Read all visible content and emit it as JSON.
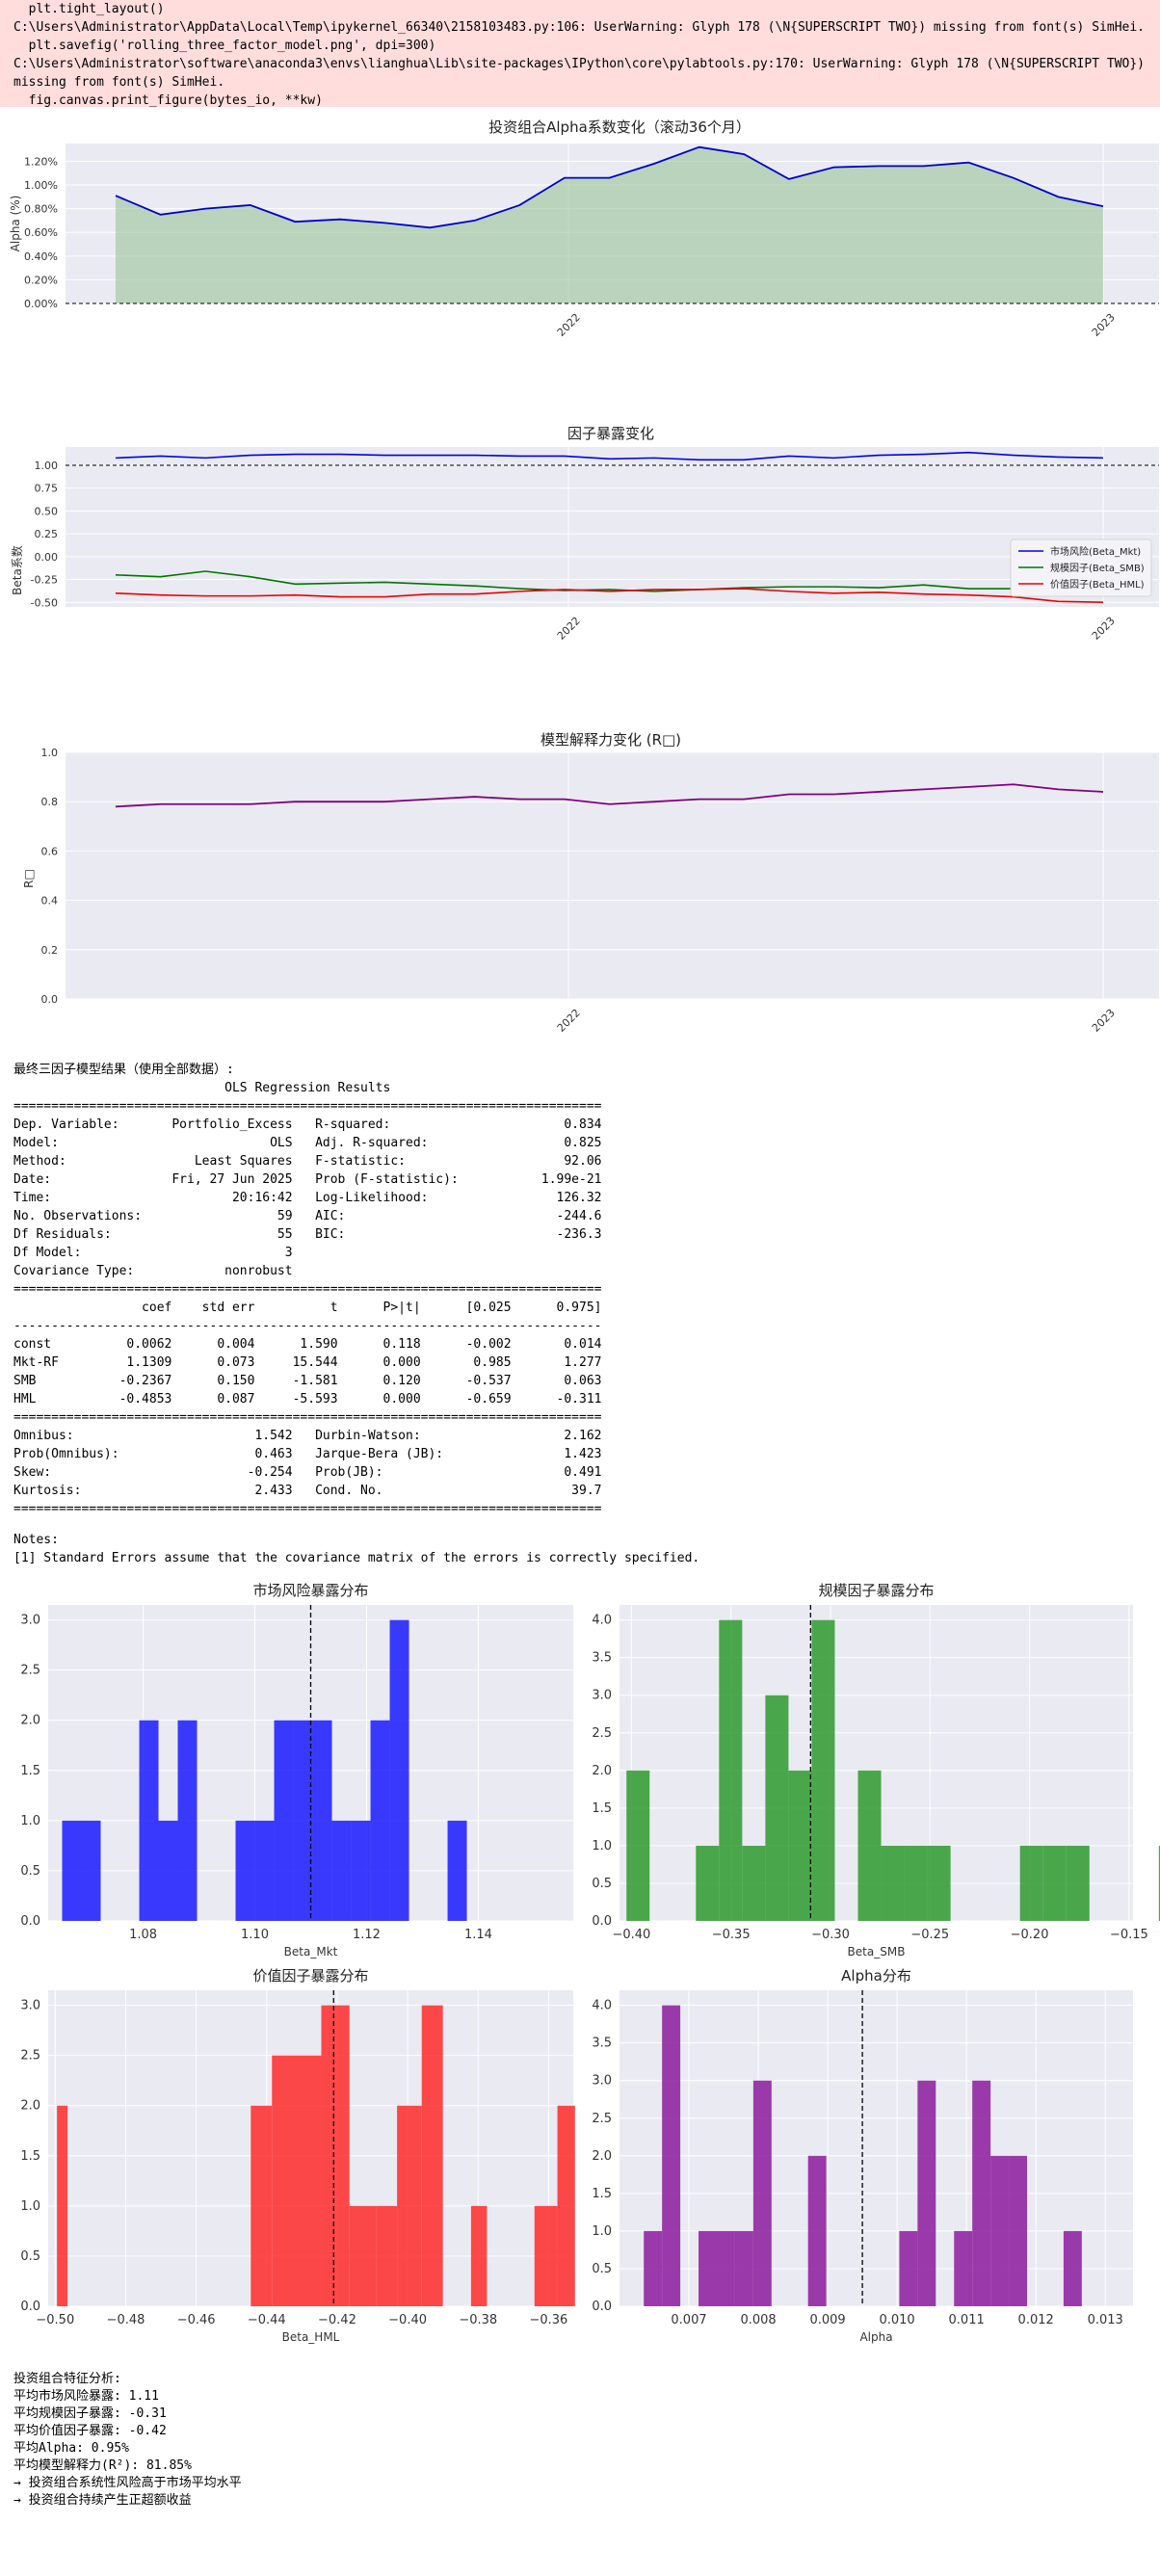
{
  "warning": {
    "lines": [
      "  plt.tight_layout()",
      "C:\\Users\\Administrator\\AppData\\Local\\Temp\\ipykernel_66340\\2158103483.py:106: UserWarning: Glyph 178 (\\N{SUPERSCRIPT TWO}) missing from font(s) SimHei.",
      "  plt.savefig('rolling_three_factor_model.png', dpi=300)",
      "C:\\Users\\Administrator\\software\\anaconda3\\envs\\lianghua\\Lib\\site-packages\\IPython\\core\\pylabtools.py:170: UserWarning: Glyph 178 (\\N{SUPERSCRIPT TWO})",
      "missing from font(s) SimHei.",
      "  fig.canvas.print_figure(bytes_io, **kw)"
    ]
  },
  "charts": {
    "alpha": {
      "title": "投资组合Alpha系数变化（滚动36个月）",
      "ylabel": "Alpha (%)",
      "x_ticks": [
        "2022",
        "2023"
      ],
      "y_ticks": [
        "0.00%",
        "0.20%",
        "0.40%",
        "0.60%",
        "0.80%",
        "1.00%",
        "1.20%"
      ]
    },
    "beta": {
      "title": "因子暴露变化",
      "ylabel": "Beta系数",
      "x_ticks": [
        "2022",
        "2023"
      ],
      "y_ticks": [
        "-0.50",
        "-0.25",
        "0.00",
        "0.25",
        "0.50",
        "0.75",
        "1.00"
      ],
      "legend": [
        "市场风险(Beta_Mkt)",
        "规模因子(Beta_SMB)",
        "价值因子(Beta_HML)"
      ]
    },
    "r2": {
      "title": "模型解释力变化 (R□)",
      "ylabel": "R□",
      "x_ticks": [
        "2022",
        "2023"
      ],
      "y_ticks": [
        "0.0",
        "0.2",
        "0.4",
        "0.6",
        "0.8",
        "1.0"
      ]
    },
    "hist_mkt": {
      "title": "市场风险暴露分布",
      "xlabel": "Beta_Mkt",
      "x_ticks": [
        "1.08",
        "1.10",
        "1.12",
        "1.14"
      ],
      "y_ticks": [
        "0.0",
        "0.5",
        "1.0",
        "1.5",
        "2.0",
        "2.5",
        "3.0"
      ]
    },
    "hist_smb": {
      "title": "规模因子暴露分布",
      "xlabel": "Beta_SMB",
      "x_ticks": [
        "−0.40",
        "−0.35",
        "−0.30",
        "−0.25",
        "−0.20",
        "−0.15"
      ],
      "y_ticks": [
        "0.0",
        "0.5",
        "1.0",
        "1.5",
        "2.0",
        "2.5",
        "3.0",
        "3.5",
        "4.0"
      ]
    },
    "hist_hml": {
      "title": "价值因子暴露分布",
      "xlabel": "Beta_HML",
      "x_ticks": [
        "−0.50",
        "−0.48",
        "−0.46",
        "−0.44",
        "−0.42",
        "−0.40",
        "−0.38",
        "−0.36"
      ],
      "y_ticks": [
        "0.0",
        "0.5",
        "1.0",
        "1.5",
        "2.0",
        "2.5",
        "3.0"
      ]
    },
    "hist_alpha": {
      "title": "Alpha分布",
      "xlabel": "Alpha",
      "x_ticks": [
        "0.007",
        "0.008",
        "0.009",
        "0.010",
        "0.011",
        "0.012",
        "0.013"
      ],
      "y_ticks": [
        "0.0",
        "0.5",
        "1.0",
        "1.5",
        "2.0",
        "2.5",
        "3.0",
        "3.5",
        "4.0"
      ]
    }
  },
  "chart_data": [
    {
      "type": "area",
      "title": "投资组合Alpha系数变化（滚动36个月）",
      "ylabel": "Alpha (%)",
      "ylim": [
        0,
        1.35
      ],
      "y_ticks": [
        0,
        0.2,
        0.4,
        0.6,
        0.8,
        1.0,
        1.2
      ],
      "x_ticks": [
        "2022",
        "2023"
      ],
      "colors": {
        "line": "#0000cc",
        "fill": "#8fbf8f"
      },
      "values": [
        0.91,
        0.75,
        0.8,
        0.83,
        0.69,
        0.71,
        0.68,
        0.64,
        0.7,
        0.83,
        1.06,
        1.06,
        1.18,
        1.32,
        1.26,
        1.05,
        1.15,
        1.16,
        1.16,
        1.19,
        1.06,
        0.9,
        0.82
      ]
    },
    {
      "type": "line",
      "title": "因子暴露变化",
      "ylabel": "Beta系数",
      "ylim": [
        -0.55,
        1.2
      ],
      "y_ticks": [
        -0.5,
        -0.25,
        0,
        0.25,
        0.5,
        0.75,
        1.0
      ],
      "x_ticks": [
        "2022",
        "2023"
      ],
      "legend_position": "center-right",
      "series": [
        {
          "name": "市场风险(Beta_Mkt)",
          "color": "#0000ee",
          "values": [
            1.08,
            1.1,
            1.08,
            1.11,
            1.12,
            1.12,
            1.11,
            1.11,
            1.11,
            1.1,
            1.1,
            1.07,
            1.08,
            1.06,
            1.06,
            1.1,
            1.08,
            1.11,
            1.12,
            1.14,
            1.11,
            1.09,
            1.08
          ]
        },
        {
          "name": "规模因子(Beta_SMB)",
          "color": "#007700",
          "values": [
            -0.2,
            -0.22,
            -0.16,
            -0.22,
            -0.3,
            -0.29,
            -0.28,
            -0.3,
            -0.32,
            -0.35,
            -0.37,
            -0.36,
            -0.38,
            -0.36,
            -0.34,
            -0.33,
            -0.33,
            -0.34,
            -0.31,
            -0.35,
            -0.35,
            -0.33,
            -0.27
          ]
        },
        {
          "name": "价值因子(Beta_HML)",
          "color": "#ee0000",
          "values": [
            -0.4,
            -0.42,
            -0.43,
            -0.43,
            -0.42,
            -0.44,
            -0.44,
            -0.41,
            -0.41,
            -0.38,
            -0.36,
            -0.38,
            -0.36,
            -0.36,
            -0.35,
            -0.38,
            -0.4,
            -0.39,
            -0.41,
            -0.42,
            -0.44,
            -0.49,
            -0.5
          ]
        }
      ]
    },
    {
      "type": "line",
      "title": "模型解释力变化 (R□)",
      "ylabel": "R□",
      "ylim": [
        0,
        1.0
      ],
      "y_ticks": [
        0,
        0.2,
        0.4,
        0.6,
        0.8,
        1.0
      ],
      "x_ticks": [
        "2022",
        "2023"
      ],
      "series": [
        {
          "color": "#800080",
          "values": [
            0.78,
            0.79,
            0.79,
            0.79,
            0.8,
            0.8,
            0.8,
            0.81,
            0.82,
            0.81,
            0.81,
            0.79,
            0.8,
            0.81,
            0.81,
            0.83,
            0.83,
            0.84,
            0.85,
            0.86,
            0.87,
            0.85,
            0.84
          ]
        }
      ]
    },
    {
      "type": "bar",
      "title": "市场风险暴露分布",
      "xlabel": "Beta_Mkt",
      "color": "#1a1aff",
      "bin_start": 1.0655,
      "bin_width": 0.00345,
      "counts": [
        1,
        1,
        0,
        0,
        2,
        1,
        2,
        0,
        0,
        1,
        1,
        2,
        2,
        2,
        1,
        1,
        2,
        3,
        0,
        0,
        1
      ],
      "mean": 1.11,
      "xlim": [
        1.063,
        1.157
      ],
      "ylim": [
        0,
        3.15
      ]
    },
    {
      "type": "bar",
      "title": "规模因子暴露分布",
      "xlabel": "Beta_SMB",
      "color": "#2e9a2e",
      "bin_start": -0.4025,
      "bin_width": 0.01163,
      "counts": [
        2,
        0,
        0,
        1,
        4,
        1,
        3,
        2,
        4,
        0,
        2,
        1,
        1,
        1,
        0,
        0,
        0,
        1,
        1,
        1,
        0,
        0,
        0,
        1
      ],
      "mean": -0.31,
      "xlim": [
        -0.406,
        -0.148
      ],
      "ylim": [
        0,
        4.2
      ]
    },
    {
      "type": "bar",
      "title": "价值因子暴露分布",
      "xlabel": "Beta_HML",
      "color": "#ff2a2a",
      "bin_start": -0.4995,
      "bin_width": 0.00733,
      "counts": [
        2,
        0,
        0,
        0,
        0,
        0,
        0,
        0,
        0,
        0,
        0,
        0,
        0,
        0,
        0,
        0,
        0,
        0,
        0,
        0
      ],
      "custom": true,
      "mean": -0.421,
      "xlim": [
        -0.502,
        -0.353
      ],
      "ylim": [
        0,
        3.15
      ]
    },
    {
      "type": "bar",
      "title": "Alpha分布",
      "xlabel": "Alpha",
      "color": "#8c1a9c",
      "bin_start": 0.00635,
      "bin_width": 0.000263,
      "counts": [
        1,
        4,
        0,
        1,
        1,
        1,
        3,
        0,
        0,
        2,
        0,
        0,
        0,
        0,
        1,
        3,
        0,
        1,
        3,
        2,
        2,
        0,
        0,
        1
      ],
      "mean": 0.0095,
      "xlim": [
        0.006,
        0.0134
      ],
      "ylim": [
        0,
        4.2
      ]
    }
  ],
  "hml_bars": {
    "edges": [
      -0.4995,
      -0.4965,
      -0.4445,
      -0.4385,
      -0.4245,
      -0.4165,
      -0.409,
      -0.403,
      -0.396,
      -0.39,
      -0.382,
      -0.3775,
      -0.364,
      -0.3575
    ],
    "counts": [
      2,
      0,
      2,
      2.5,
      3,
      1,
      1,
      2,
      3,
      0,
      1,
      0,
      1,
      2
    ]
  },
  "ols": {
    "intro": "最终三因子模型结果（使用全部数据）:",
    "text": "                            OLS Regression Results                            \n==============================================================================\nDep. Variable:       Portfolio_Excess   R-squared:                       0.834\nModel:                            OLS   Adj. R-squared:                  0.825\nMethod:                 Least Squares   F-statistic:                     92.06\nDate:                Fri, 27 Jun 2025   Prob (F-statistic):           1.99e-21\nTime:                        20:16:42   Log-Likelihood:                 126.32\nNo. Observations:                  59   AIC:                            -244.6\nDf Residuals:                      55   BIC:                            -236.3\nDf Model:                           3                                         \nCovariance Type:            nonrobust                                         \n==============================================================================\n                 coef    std err          t      P>|t|      [0.025      0.975]\n------------------------------------------------------------------------------\nconst          0.0062      0.004      1.590      0.118      -0.002       0.014\nMkt-RF         1.1309      0.073     15.544      0.000       0.985       1.277\nSMB           -0.2367      0.150     -1.581      0.120      -0.537       0.063\nHML           -0.4853      0.087     -5.593      0.000      -0.659      -0.311\n==============================================================================\nOmnibus:                        1.542   Durbin-Watson:                   2.162\nProb(Omnibus):                  0.463   Jarque-Bera (JB):                1.423\nSkew:                          -0.254   Prob(JB):                        0.491\nKurtosis:                       2.433   Cond. No.                         39.7\n==============================================================================",
    "notes": "Notes:\n[1] Standard Errors assume that the covariance matrix of the errors is correctly specified."
  },
  "summary": {
    "lines": [
      "投资组合特征分析:",
      "平均市场风险暴露: 1.11",
      "平均规模因子暴露: -0.31",
      "平均价值因子暴露: -0.42",
      "平均Alpha: 0.95%",
      "平均模型解释力(R²): 81.85%",
      "→ 投资组合系统性风险高于市场平均水平",
      "→ 投资组合持续产生正超额收益"
    ]
  }
}
